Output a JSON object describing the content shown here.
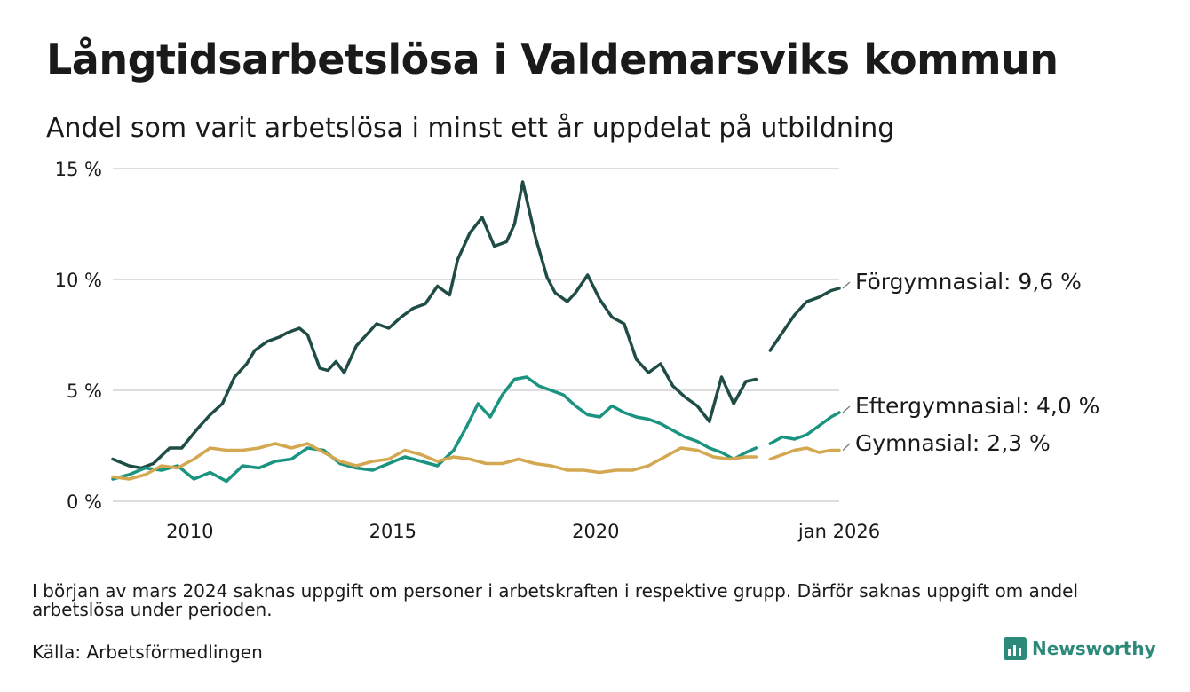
{
  "title": "Långtidsarbetslösa i Valdemarsviks kommun",
  "subtitle": "Andel som varit arbetslösa i minst ett år uppdelat på utbildning",
  "note": "I början av mars 2024 saknas uppgift om personer i arbetskraften i respektive grupp. Därför saknas uppgift om andel arbetslösa under perioden.",
  "source": "Källa: Arbetsförmedlingen",
  "brand": "Newsworthy",
  "colors": {
    "forgymnasial": "#1f4d45",
    "eftergymnasial": "#1a9480",
    "gymnasial": "#d4a851",
    "grid": "#dddddd",
    "brand": "#2d8a7a"
  },
  "chart_data": {
    "type": "line",
    "title": "Långtidsarbetslösa i Valdemarsviks kommun",
    "subtitle": "Andel som varit arbetslösa i minst ett år uppdelat på utbildning",
    "ylim": [
      0,
      15
    ],
    "xlim": [
      2008.1,
      2026.0
    ],
    "y_ticks": [
      0,
      5,
      10,
      15
    ],
    "y_tick_labels": [
      "0 %",
      "5 %",
      "10 %",
      "15 %"
    ],
    "x_ticks": [
      2010,
      2015,
      2020,
      2026.0
    ],
    "x_tick_labels": [
      "2010",
      "2015",
      "2020",
      "jan 2026"
    ],
    "gap": [
      2024.0,
      2024.25
    ],
    "series": [
      {
        "name": "Förgymnasial",
        "end_label": "Förgymnasial: 9,6 %",
        "color": "#1f4d45",
        "x": [
          2008.1,
          2008.5,
          2008.8,
          2009.1,
          2009.5,
          2009.8,
          2010.2,
          2010.5,
          2010.8,
          2011.1,
          2011.4,
          2011.6,
          2011.9,
          2012.2,
          2012.4,
          2012.7,
          2012.9,
          2013.2,
          2013.4,
          2013.6,
          2013.8,
          2014.1,
          2014.3,
          2014.6,
          2014.9,
          2015.2,
          2015.5,
          2015.8,
          2016.1,
          2016.4,
          2016.6,
          2016.9,
          2017.2,
          2017.5,
          2017.8,
          2018.0,
          2018.2,
          2018.5,
          2018.8,
          2019.0,
          2019.3,
          2019.5,
          2019.8,
          2020.1,
          2020.4,
          2020.7,
          2021.0,
          2021.3,
          2021.6,
          2021.9,
          2022.2,
          2022.5,
          2022.8,
          2023.1,
          2023.4,
          2023.7,
          2023.95,
          2024.3,
          2024.6,
          2024.9,
          2025.2,
          2025.5,
          2025.8,
          2026.0
        ],
        "y": [
          1.9,
          1.6,
          1.5,
          1.7,
          2.4,
          2.4,
          3.3,
          3.9,
          4.4,
          5.6,
          6.2,
          6.8,
          7.2,
          7.4,
          7.6,
          7.8,
          7.5,
          6.0,
          5.9,
          6.3,
          5.8,
          7.0,
          7.4,
          8.0,
          7.8,
          8.3,
          8.7,
          8.9,
          9.7,
          9.3,
          10.9,
          12.1,
          12.8,
          11.5,
          11.7,
          12.5,
          14.4,
          12.0,
          10.1,
          9.4,
          9.0,
          9.4,
          10.2,
          9.1,
          8.3,
          8.0,
          6.4,
          5.8,
          6.2,
          5.2,
          4.7,
          4.3,
          3.6,
          5.6,
          4.4,
          5.4,
          5.5,
          6.8,
          7.6,
          8.4,
          9.0,
          9.2,
          9.5,
          9.6
        ]
      },
      {
        "name": "Eftergymnasial",
        "end_label": "Eftergymnasial: 4,0 %",
        "color": "#1a9480",
        "x": [
          2008.1,
          2008.5,
          2008.9,
          2009.3,
          2009.7,
          2010.1,
          2010.5,
          2010.9,
          2011.3,
          2011.7,
          2012.1,
          2012.5,
          2012.9,
          2013.3,
          2013.7,
          2014.1,
          2014.5,
          2014.9,
          2015.3,
          2015.7,
          2016.1,
          2016.5,
          2016.8,
          2017.1,
          2017.4,
          2017.7,
          2018.0,
          2018.3,
          2018.6,
          2018.9,
          2019.2,
          2019.5,
          2019.8,
          2020.1,
          2020.4,
          2020.7,
          2021.0,
          2021.3,
          2021.6,
          2021.9,
          2022.2,
          2022.5,
          2022.8,
          2023.1,
          2023.4,
          2023.7,
          2023.95,
          2024.3,
          2024.6,
          2024.9,
          2025.2,
          2025.5,
          2025.8,
          2026.0
        ],
        "y": [
          1.0,
          1.2,
          1.5,
          1.4,
          1.6,
          1.0,
          1.3,
          0.9,
          1.6,
          1.5,
          1.8,
          1.9,
          2.4,
          2.3,
          1.7,
          1.5,
          1.4,
          1.7,
          2.0,
          1.8,
          1.6,
          2.3,
          3.3,
          4.4,
          3.8,
          4.8,
          5.5,
          5.6,
          5.2,
          5.0,
          4.8,
          4.3,
          3.9,
          3.8,
          4.3,
          4.0,
          3.8,
          3.7,
          3.5,
          3.2,
          2.9,
          2.7,
          2.4,
          2.2,
          1.9,
          2.2,
          2.4,
          2.6,
          2.9,
          2.8,
          3.0,
          3.4,
          3.8,
          4.0
        ]
      },
      {
        "name": "Gymnasial",
        "end_label": "Gymnasial: 2,3 %",
        "color": "#d4a851",
        "x": [
          2008.1,
          2008.5,
          2008.9,
          2009.3,
          2009.7,
          2010.1,
          2010.5,
          2010.9,
          2011.3,
          2011.7,
          2012.1,
          2012.5,
          2012.9,
          2013.3,
          2013.7,
          2014.1,
          2014.5,
          2014.9,
          2015.3,
          2015.7,
          2016.1,
          2016.5,
          2016.9,
          2017.3,
          2017.7,
          2018.1,
          2018.5,
          2018.9,
          2019.3,
          2019.7,
          2020.1,
          2020.5,
          2020.9,
          2021.3,
          2021.7,
          2022.1,
          2022.5,
          2022.9,
          2023.3,
          2023.7,
          2023.95,
          2024.3,
          2024.6,
          2024.9,
          2025.2,
          2025.5,
          2025.8,
          2026.0
        ],
        "y": [
          1.1,
          1.0,
          1.2,
          1.6,
          1.5,
          1.9,
          2.4,
          2.3,
          2.3,
          2.4,
          2.6,
          2.4,
          2.6,
          2.2,
          1.8,
          1.6,
          1.8,
          1.9,
          2.3,
          2.1,
          1.8,
          2.0,
          1.9,
          1.7,
          1.7,
          1.9,
          1.7,
          1.6,
          1.4,
          1.4,
          1.3,
          1.4,
          1.4,
          1.6,
          2.0,
          2.4,
          2.3,
          2.0,
          1.9,
          2.0,
          2.0,
          1.9,
          2.1,
          2.3,
          2.4,
          2.2,
          2.3,
          2.3
        ]
      }
    ]
  }
}
